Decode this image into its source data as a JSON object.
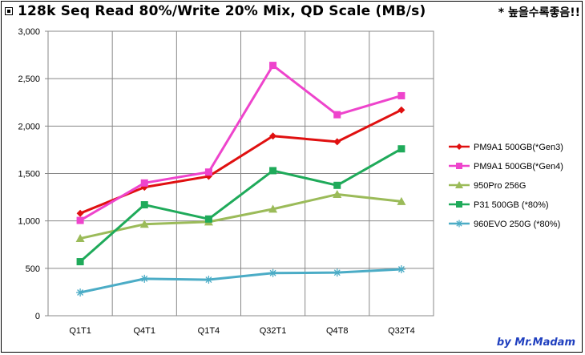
{
  "title": "128k Seq Read 80%/Write 20% Mix, QD Scale (MB/s)",
  "note": "* 높을수록좋음!!",
  "credit": "by Mr.Madam",
  "chart_data": {
    "type": "line",
    "categories": [
      "Q1T1",
      "Q4T1",
      "Q1T4",
      "Q32T1",
      "Q4T8",
      "Q32T4"
    ],
    "ylim": [
      0,
      3000
    ],
    "yticks": [
      0,
      500,
      1000,
      1500,
      2000,
      2500,
      3000
    ],
    "ytick_labels": [
      "0",
      "500",
      "1,000",
      "1,500",
      "2,000",
      "2,500",
      "3,000"
    ],
    "grid": true,
    "legend_position": "right",
    "series": [
      {
        "name": "PM9A1 500GB(*Gen3)",
        "color": "#e01010",
        "marker": "diamond",
        "values": [
          1080,
          1355,
          1470,
          1895,
          1835,
          2170
        ]
      },
      {
        "name": "PM9A1 500GB(*Gen4)",
        "color": "#ee44cc",
        "marker": "square",
        "values": [
          1005,
          1400,
          1515,
          2640,
          2120,
          2320
        ]
      },
      {
        "name": "950Pro 256G",
        "color": "#9bbb59",
        "marker": "triangle",
        "values": [
          815,
          965,
          990,
          1125,
          1280,
          1205
        ]
      },
      {
        "name": "P31 500GB (*80%)",
        "color": "#1faa5a",
        "marker": "square",
        "values": [
          570,
          1170,
          1020,
          1530,
          1375,
          1760
        ]
      },
      {
        "name": "960EVO 250G (*80%)",
        "color": "#4bacc6",
        "marker": "asterisk",
        "values": [
          245,
          390,
          380,
          450,
          455,
          490
        ]
      }
    ]
  }
}
